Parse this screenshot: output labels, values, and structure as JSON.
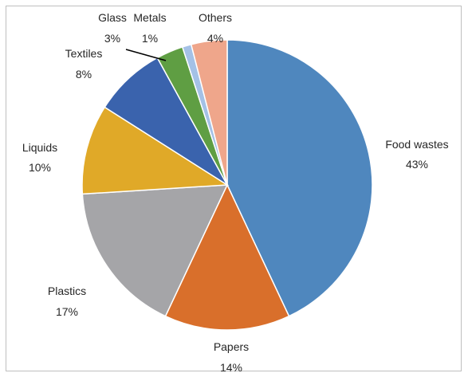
{
  "chart_data": {
    "type": "pie",
    "title": "",
    "legend": "none",
    "slices": [
      {
        "name": "Food wastes",
        "value": 43,
        "label": "43%",
        "color": "#4f87be"
      },
      {
        "name": "Papers",
        "value": 14,
        "label": "14%",
        "color": "#d96f2b"
      },
      {
        "name": "Plastics",
        "value": 17,
        "label": "17%",
        "color": "#a5a5a8"
      },
      {
        "name": "Liquids",
        "value": 10,
        "label": "10%",
        "color": "#e0a928"
      },
      {
        "name": "Textiles",
        "value": 8,
        "label": "8%",
        "color": "#3a63ad"
      },
      {
        "name": "Glass",
        "value": 3,
        "label": "3%",
        "color": "#5f9e43"
      },
      {
        "name": "Metals",
        "value": 1,
        "label": "1%",
        "color": "#a4c1e6"
      },
      {
        "name": "Others",
        "value": 4,
        "label": "4%",
        "color": "#efa68b"
      }
    ]
  }
}
